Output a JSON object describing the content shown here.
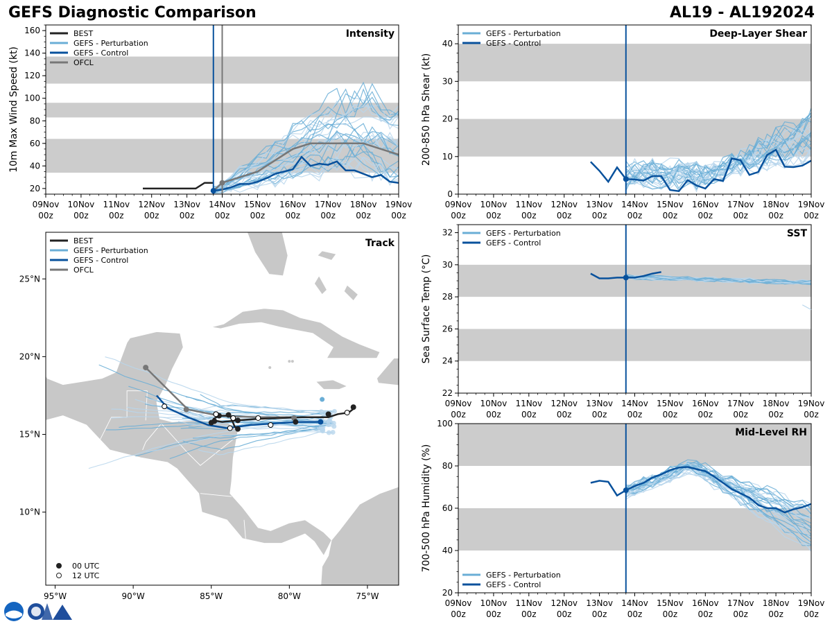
{
  "header": {
    "title": "GEFS Diagnostic Comparison",
    "storm": "AL19 - AL192024"
  },
  "colors": {
    "best": "#222222",
    "perturbation": "#6aaed6",
    "perturbation_light": "#b8d6ec",
    "control": "#08519c",
    "ofcl": "#777777",
    "band": "#cccccc",
    "land": "#c8c8c8"
  },
  "time_axis": {
    "ticks": [
      "09Nov\n00z",
      "10Nov\n00z",
      "11Nov\n00z",
      "12Nov\n00z",
      "13Nov\n00z",
      "14Nov\n00z",
      "15Nov\n00z",
      "16Nov\n00z",
      "17Nov\n00z",
      "18Nov\n00z",
      "19Nov\n00z"
    ],
    "init_day": 4.75
  },
  "chart_data": [
    {
      "id": "intensity",
      "type": "line",
      "title": "Intensity",
      "ylabel": "10m Max Wind Speed (kt)",
      "ylim": [
        15,
        165
      ],
      "yticks": [
        20,
        40,
        60,
        80,
        100,
        120,
        140,
        160
      ],
      "bands": [
        [
          34,
          64
        ],
        [
          83,
          96
        ],
        [
          113,
          137
        ]
      ],
      "legend": [
        "BEST",
        "GEFS - Perturbation",
        "GEFS - Control",
        "OFCL"
      ],
      "best": {
        "x": [
          2.75,
          3.0,
          3.25,
          3.5,
          3.75,
          4.0,
          4.25,
          4.5,
          4.75
        ],
        "y": [
          20,
          20,
          20,
          20,
          20,
          20,
          20,
          25,
          25
        ]
      },
      "control": {
        "x": [
          4.75,
          5.0,
          5.25,
          5.5,
          5.75,
          6.0,
          6.25,
          6.5,
          6.75,
          7.0,
          7.25,
          7.5,
          7.75,
          8.0,
          8.25,
          8.5,
          8.75,
          9.0,
          9.25,
          9.5,
          9.75,
          10.0
        ],
        "y": [
          18,
          19,
          21,
          24,
          24,
          26,
          29,
          33,
          35,
          37,
          48,
          40,
          42,
          41,
          44,
          36,
          36,
          33,
          30,
          32,
          26,
          25
        ]
      },
      "ofcl": {
        "x": [
          4.75,
          5.0,
          6.0,
          7.0,
          7.5,
          8.0,
          8.5,
          9.0,
          9.5,
          10.0
        ],
        "y": [
          18,
          25,
          35,
          55,
          60,
          60,
          60,
          60,
          55,
          50
        ]
      },
      "ofcl_marker": {
        "x": 5.0,
        "y": 25
      },
      "vlines": [
        {
          "x": 4.75,
          "series": "control"
        },
        {
          "x": 5.0,
          "series": "ofcl"
        }
      ]
    },
    {
      "id": "shear",
      "type": "line",
      "title": "Deep-Layer Shear",
      "ylabel": "200-850 hPa Shear (kt)",
      "ylim": [
        0,
        45
      ],
      "yticks": [
        0,
        10,
        20,
        30,
        40
      ],
      "bands": [
        [
          10,
          20
        ],
        [
          30,
          40
        ]
      ],
      "legend": [
        "GEFS - Perturbation",
        "GEFS - Control"
      ],
      "control": {
        "x": [
          3.75,
          4.0,
          4.25,
          4.5,
          4.75,
          5.0,
          5.25,
          5.5,
          5.75,
          6.0,
          6.25,
          6.5,
          6.75,
          7.0,
          7.25,
          7.5,
          7.75,
          8.0,
          8.25,
          8.5,
          8.75,
          9.0,
          9.25,
          9.5,
          9.75,
          10.0
        ],
        "y": [
          8.6,
          6.2,
          3.3,
          7.1,
          4.0,
          3.9,
          3.6,
          4.8,
          4.8,
          1.1,
          0.8,
          3.7,
          2.3,
          1.5,
          4.0,
          3.5,
          9.5,
          9.0,
          5.1,
          5.9,
          10.4,
          11.8,
          7.3,
          7.2,
          7.6,
          8.9
        ]
      }
    },
    {
      "id": "sst",
      "type": "line",
      "title": "SST",
      "ylabel": "Sea Surface Temp (°C)",
      "ylim": [
        22,
        32.5
      ],
      "yticks": [
        22,
        24,
        26,
        28,
        30,
        32
      ],
      "bands": [
        [
          24,
          26
        ],
        [
          28,
          30
        ]
      ],
      "legend": [
        "GEFS - Perturbation",
        "GEFS - Control"
      ],
      "control": {
        "x": [
          3.75,
          4.0,
          4.25,
          4.5,
          4.75,
          5.0,
          5.25,
          5.5,
          5.75
        ],
        "y": [
          29.45,
          29.15,
          29.15,
          29.2,
          29.2,
          29.2,
          29.3,
          29.45,
          29.55
        ]
      }
    },
    {
      "id": "rh",
      "type": "line",
      "title": "Mid-Level RH",
      "ylabel": "700-500 hPa Humidity (%)",
      "ylim": [
        20,
        100
      ],
      "yticks": [
        20,
        40,
        60,
        80,
        100
      ],
      "bands": [
        [
          40,
          60
        ],
        [
          80,
          100
        ]
      ],
      "legend": [
        "GEFS - Perturbation",
        "GEFS - Control"
      ],
      "control": {
        "x": [
          3.75,
          4.0,
          4.25,
          4.5,
          4.75,
          5.0,
          5.25,
          5.5,
          5.75,
          6.0,
          6.25,
          6.5,
          6.75,
          7.0,
          7.25,
          7.5,
          7.75,
          8.0,
          8.25,
          8.5,
          8.75,
          9.0,
          9.25,
          9.5,
          9.75,
          10.0
        ],
        "y": [
          72,
          73,
          72.5,
          66,
          68.5,
          70.5,
          72,
          74.5,
          76,
          78,
          79.2,
          79.5,
          78.5,
          77.5,
          75,
          72,
          69,
          67,
          65,
          61.5,
          60,
          60,
          58,
          59.5,
          60.5,
          62
        ]
      }
    },
    {
      "id": "track",
      "type": "scatter",
      "title": "Track",
      "xlim": [
        -95.6,
        -73
      ],
      "ylim": [
        5.3,
        28
      ],
      "xticks": [
        -95,
        -90,
        -85,
        -80,
        -75
      ],
      "xtick_labels": [
        "95°W",
        "90°W",
        "85°W",
        "80°W",
        "75°W"
      ],
      "yticks": [
        10,
        15,
        20,
        25
      ],
      "ytick_labels": [
        "10°N",
        "15°N",
        "20°N",
        "25°N"
      ],
      "legend": [
        "BEST",
        "GEFS - Perturbation",
        "GEFS - Control",
        "OFCL"
      ],
      "marker_legend": [
        "00 UTC",
        "12 UTC"
      ],
      "best": {
        "lon": [
          -75.9,
          -75.95,
          -76.2,
          -76.9,
          -77.5,
          -79.2,
          -82.0,
          -83.3,
          -84.3,
          -84.85,
          -85.0,
          -84.85,
          -84.5,
          -83.8,
          -83.5,
          -83.3
        ],
        "lat": [
          16.8,
          16.6,
          16.4,
          16.3,
          16.1,
          16.1,
          16.0,
          15.9,
          15.8,
          15.9,
          15.7,
          16.0,
          16.2,
          16.2,
          15.5,
          15.3
        ]
      },
      "control": {
        "lon": [
          -78.0,
          -79.5,
          -81.0,
          -82.5,
          -84.0,
          -85.2,
          -86.5,
          -87.8,
          -88.5
        ],
        "lat": [
          15.8,
          15.8,
          15.7,
          15.6,
          15.4,
          15.6,
          16.1,
          16.7,
          17.5
        ]
      },
      "ofcl": {
        "lon": [
          -79.7,
          -82.0,
          -84.5,
          -86.5,
          -89.2
        ],
        "lat": [
          16.1,
          16.1,
          16.2,
          16.6,
          19.3
        ]
      },
      "ofcl_markers_00": {
        "lon": [
          -79.7,
          -86.6,
          -89.2
        ],
        "lat": [
          16.05,
          16.6,
          19.3
        ]
      },
      "ofcl_markers_12": {
        "lon": [
          -82.0,
          -84.7,
          -88.0
        ],
        "lat": [
          16.05,
          16.3,
          16.8
        ]
      },
      "best_markers_00": {
        "lon": [
          -75.9,
          -77.5,
          -79.6,
          -83.3,
          -84.5,
          -85.0,
          -84.8,
          -83.9,
          -83.3
        ],
        "lat": [
          16.75,
          16.3,
          15.8,
          15.9,
          16.2,
          15.75,
          15.85,
          16.25,
          15.35
        ]
      },
      "best_markers_12": {
        "lon": [
          -76.3,
          -81.2,
          -84.7,
          -83.6,
          -83.8
        ],
        "lat": [
          16.4,
          15.6,
          16.3,
          16.05,
          15.4
        ]
      }
    }
  ]
}
